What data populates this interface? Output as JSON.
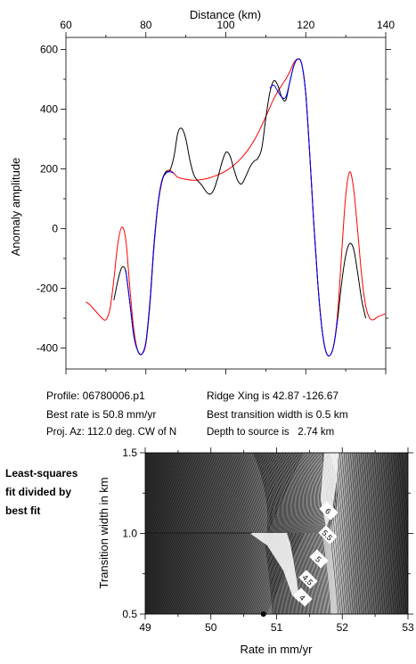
{
  "figure": {
    "info": {
      "profile": "Profile: 06780006.p1",
      "ridge_xing": "Ridge Xing is 42.87 -126.67",
      "best_rate": "Best rate is 50.8 mm/yr",
      "best_width": "Best transition width is 0.5 km",
      "proj_az": "Proj. Az: 112.0 deg. CW of N",
      "depth": "Depth to source is   2.74 km"
    },
    "side_caption": [
      "Least-squares",
      "fit divided by",
      "best fit"
    ],
    "colors": {
      "observed": "#000000",
      "model_blue": "#0000ff",
      "model_red": "#ff0000",
      "marker": "#000000"
    }
  },
  "chart_data": [
    {
      "type": "line",
      "title": "",
      "xlabel": "Distance (km)",
      "ylabel": "Anomaly amplitude",
      "xlim": [
        60,
        140
      ],
      "ylim": [
        -470,
        640
      ],
      "x_axis_position": "top",
      "xticks": [
        60,
        80,
        100,
        120,
        140
      ],
      "yticks": [
        -400,
        -200,
        0,
        200,
        400,
        600
      ],
      "grid": false,
      "series": [
        {
          "key": "observed",
          "color": "#000000",
          "points": [
            [
              72,
              -240
            ],
            [
              73,
              -175
            ],
            [
              74,
              -130
            ],
            [
              75,
              -145
            ],
            [
              76,
              -250
            ],
            [
              77,
              -360
            ],
            [
              78,
              -410
            ],
            [
              79,
              -420
            ],
            [
              80,
              -380
            ],
            [
              81,
              -250
            ],
            [
              82,
              -60
            ],
            [
              83,
              80
            ],
            [
              84,
              160
            ],
            [
              85,
              190
            ],
            [
              86,
              195
            ],
            [
              87,
              240
            ],
            [
              88,
              320
            ],
            [
              89,
              335
            ],
            [
              90,
              300
            ],
            [
              91,
              230
            ],
            [
              92,
              180
            ],
            [
              93,
              160
            ],
            [
              94,
              145
            ],
            [
              95,
              125
            ],
            [
              96,
              115
            ],
            [
              97,
              130
            ],
            [
              98,
              170
            ],
            [
              99,
              220
            ],
            [
              100,
              255
            ],
            [
              101,
              245
            ],
            [
              102,
              200
            ],
            [
              103,
              160
            ],
            [
              104,
              150
            ],
            [
              105,
              175
            ],
            [
              106,
              205
            ],
            [
              107,
              225
            ],
            [
              108,
              235
            ],
            [
              109,
              270
            ],
            [
              110,
              370
            ],
            [
              111,
              455
            ],
            [
              112,
              495
            ],
            [
              113,
              480
            ],
            [
              114,
              440
            ],
            [
              115,
              430
            ],
            [
              116,
              490
            ],
            [
              117,
              545
            ],
            [
              118,
              568
            ],
            [
              119,
              550
            ],
            [
              120,
              450
            ],
            [
              121,
              250
            ],
            [
              122,
              20
            ],
            [
              123,
              -180
            ],
            [
              124,
              -330
            ],
            [
              125,
              -410
            ],
            [
              126,
              -425
            ],
            [
              127,
              -390
            ],
            [
              128,
              -300
            ],
            [
              129,
              -180
            ],
            [
              130,
              -90
            ],
            [
              131,
              -50
            ],
            [
              132,
              -70
            ],
            [
              133,
              -150
            ],
            [
              134,
              -240
            ],
            [
              135,
              -300
            ]
          ]
        },
        {
          "key": "model_blue",
          "color": "#0000ff",
          "points": [
            [
              75,
              -140
            ],
            [
              76,
              -250
            ],
            [
              77,
              -360
            ],
            [
              78,
              -410
            ],
            [
              79,
              -420
            ],
            [
              80,
              -380
            ],
            [
              81,
              -250
            ],
            [
              82,
              -60
            ],
            [
              83,
              80
            ],
            [
              84,
              160
            ],
            [
              85,
              185
            ],
            [
              86,
              190
            ],
            [
              87,
              185
            ],
            [
              111,
              470
            ],
            [
              112,
              480
            ],
            [
              113,
              460
            ],
            [
              114,
              440
            ],
            [
              115,
              440
            ],
            [
              116,
              490
            ],
            [
              117,
              545
            ],
            [
              118,
              568
            ],
            [
              119,
              550
            ],
            [
              120,
              450
            ],
            [
              121,
              250
            ],
            [
              122,
              20
            ],
            [
              123,
              -180
            ],
            [
              124,
              -330
            ],
            [
              125,
              -410
            ],
            [
              126,
              -425
            ],
            [
              127,
              -390
            ],
            [
              128,
              -300
            ]
          ]
        },
        {
          "key": "model_red",
          "color": "#ff0000",
          "points": [
            [
              65,
              -245
            ],
            [
              66,
              -255
            ],
            [
              67,
              -270
            ],
            [
              68,
              -285
            ],
            [
              69,
              -300
            ],
            [
              70,
              -305
            ],
            [
              71,
              -270
            ],
            [
              72,
              -170
            ],
            [
              73,
              -50
            ],
            [
              74,
              5
            ],
            [
              75,
              -40
            ],
            [
              76,
              -200
            ],
            [
              77,
              -340
            ],
            [
              78,
              -410
            ],
            [
              79,
              -420
            ],
            [
              80,
              -385
            ],
            [
              81,
              -260
            ],
            [
              82,
              -70
            ],
            [
              83,
              75
            ],
            [
              84,
              155
            ],
            [
              85,
              190
            ],
            [
              86,
              195
            ],
            [
              87,
              185
            ],
            [
              88,
              172
            ],
            [
              90,
              165
            ],
            [
              92,
              162
            ],
            [
              94,
              164
            ],
            [
              96,
              170
            ],
            [
              98,
              180
            ],
            [
              100,
              193
            ],
            [
              102,
              212
            ],
            [
              104,
              238
            ],
            [
              106,
              272
            ],
            [
              108,
              318
            ],
            [
              110,
              375
            ],
            [
              112,
              435
            ],
            [
              114,
              480
            ],
            [
              115,
              500
            ],
            [
              116,
              525
            ],
            [
              117,
              555
            ],
            [
              118,
              568
            ],
            [
              119,
              550
            ],
            [
              120,
              450
            ],
            [
              121,
              250
            ],
            [
              122,
              20
            ],
            [
              123,
              -180
            ],
            [
              124,
              -330
            ],
            [
              125,
              -410
            ],
            [
              126,
              -425
            ],
            [
              127,
              -390
            ],
            [
              128,
              -280
            ],
            [
              129,
              -80
            ],
            [
              130,
              110
            ],
            [
              131,
              190
            ],
            [
              132,
              130
            ],
            [
              133,
              -10
            ],
            [
              134,
              -160
            ],
            [
              135,
              -260
            ],
            [
              136,
              -300
            ],
            [
              137,
              -305
            ],
            [
              138,
              -295
            ],
            [
              139,
              -290
            ],
            [
              140,
              -285
            ]
          ]
        }
      ]
    },
    {
      "type": "heatmap",
      "title": "",
      "xlabel": "Rate in mm/yr",
      "ylabel": "Transition width in km",
      "xlim": [
        49,
        53
      ],
      "ylim": [
        0.5,
        1.5
      ],
      "xticks": [
        49,
        50,
        51,
        52,
        53
      ],
      "yticks": [
        0.5,
        1.0,
        1.5
      ],
      "grid": false,
      "contour_labels": [
        "4",
        "4.5",
        "5",
        "5.5",
        "6"
      ],
      "best_fit_marker": {
        "rate": 50.8,
        "width": 0.5
      }
    }
  ]
}
